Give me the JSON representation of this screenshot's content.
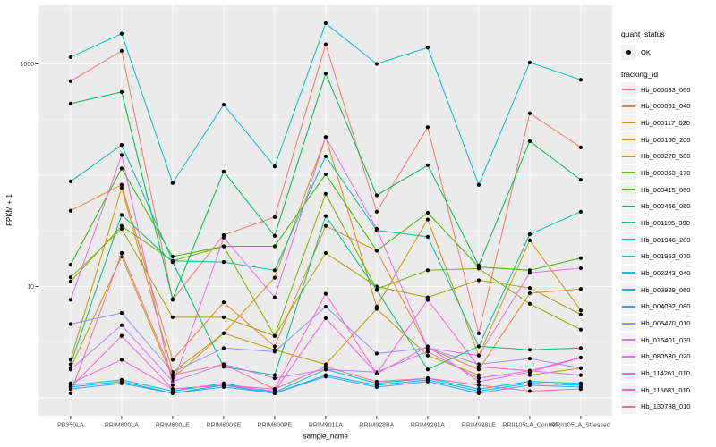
{
  "chart_data": {
    "type": "line",
    "title": "",
    "xlabel": "sample_name",
    "ylabel": "FPKM + 1",
    "y_scale": "log10",
    "ylim": [
      1,
      3000
    ],
    "y_tick_labels": [
      "1000",
      "10"
    ],
    "y_tick_values": [
      1000,
      10
    ],
    "gridlines": {
      "major": [
        1000,
        100,
        10,
        1
      ],
      "minor": [
        3162,
        316.2,
        31.62,
        3.162
      ]
    },
    "legend_position": "right",
    "panel_background": "#EBEBEB",
    "point_marker": {
      "shape": "black-dot",
      "color": "#000000"
    },
    "categories": [
      "PB350LA",
      "RRIM600LA",
      "RRIM600LE",
      "RRIM600SE",
      "RRIM600PE",
      "RRIM901LA",
      "RRIM928BA",
      "RRIM928LA",
      "RRIM928LE",
      "RRII105LA_Control",
      "RRII105LA_Stressed"
    ],
    "series": [
      {
        "name": "Hb_000033_060",
        "color": "#F8766D",
        "values": [
          700,
          1310,
          7.6,
          29,
          42,
          1500,
          47,
          270,
          3.8,
          360,
          178
        ]
      },
      {
        "name": "Hb_000061_040",
        "color": "#EA8331",
        "values": [
          48,
          82,
          2.2,
          7.2,
          2.9,
          35,
          21,
          2.8,
          1.8,
          8.7,
          9.5
        ]
      },
      {
        "name": "Hb_000117_020",
        "color": "#D89000",
        "values": [
          2.2,
          77,
          1.7,
          3.8,
          12,
          220,
          6.6,
          40,
          2.4,
          26,
          6.1
        ]
      },
      {
        "name": "Hb_000160_200",
        "color": "#C49A00",
        "values": [
          1.85,
          18.6,
          1.5,
          3.8,
          2.7,
          2.0,
          6.3,
          2.4,
          1.6,
          1.6,
          1.85
        ]
      },
      {
        "name": "Hb_000270_500",
        "color": "#A3A500",
        "values": [
          12.1,
          33,
          5.3,
          5.3,
          3.6,
          20,
          10,
          8,
          11.4,
          9.7,
          5.6
        ]
      },
      {
        "name": "Hb_000363_170",
        "color": "#7CAE00",
        "values": [
          11.1,
          35,
          17,
          23,
          3.6,
          68,
          9.5,
          14,
          14.5,
          7.0,
          4.1
        ]
      },
      {
        "name": "Hb_000415_060",
        "color": "#39B600",
        "values": [
          15.7,
          115,
          18.6,
          23,
          23,
          102,
          21,
          46,
          15,
          14,
          18
        ]
      },
      {
        "name": "Hb_000466_060",
        "color": "#00BB4E",
        "values": [
          440,
          560,
          7.7,
          108,
          28.5,
          820,
          66,
          123,
          15.5,
          202,
          91
        ]
      },
      {
        "name": "Hb_001195_390",
        "color": "#00BF7D",
        "values": [
          2.0,
          44,
          16.6,
          1.9,
          1.6,
          43,
          9.3,
          1.8,
          2.9,
          2.7,
          2.8
        ]
      },
      {
        "name": "Hb_001946_280",
        "color": "#00C1A3",
        "values": [
          88,
          187,
          17,
          16.6,
          14,
          148,
          32,
          28,
          2.9,
          29.5,
          47
        ]
      },
      {
        "name": "Hb_001952_070",
        "color": "#00BFC4",
        "values": [
          1150,
          1870,
          85,
          430,
          120,
          2320,
          1000,
          1400,
          82,
          1030,
          720
        ]
      },
      {
        "name": "Hb_002243_040",
        "color": "#00BAE0",
        "values": [
          1.3,
          1.45,
          1.15,
          1.35,
          1.12,
          1.8,
          1.35,
          1.5,
          1.2,
          1.4,
          1.35
        ]
      },
      {
        "name": "Hb_003929_060",
        "color": "#00B0F6",
        "values": [
          1.25,
          1.4,
          1.1,
          1.3,
          1.1,
          1.6,
          1.3,
          1.45,
          1.15,
          1.35,
          1.3
        ]
      },
      {
        "name": "Hb_004032_080",
        "color": "#35A2FF",
        "values": [
          1.2,
          1.35,
          1.1,
          1.25,
          1.1,
          1.55,
          1.25,
          1.4,
          1.1,
          1.3,
          1.25
        ]
      },
      {
        "name": "Hb_005470_010",
        "color": "#9590FF",
        "values": [
          4.6,
          5.8,
          1.7,
          2.8,
          2.6,
          6.6,
          2.5,
          2.8,
          2.0,
          2.25,
          1.85
        ]
      },
      {
        "name": "Hb_015401_030",
        "color": "#C77CFF",
        "values": [
          1.8,
          4.5,
          1.4,
          2.0,
          1.5,
          1.8,
          1.7,
          2.6,
          1.5,
          1.75,
          1.6
        ]
      },
      {
        "name": "Hb_080530_020",
        "color": "#E76BF3",
        "values": [
          7.6,
          152,
          1.3,
          27.5,
          8.0,
          220,
          33,
          2.8,
          2.4,
          13.3,
          14.6
        ]
      },
      {
        "name": "Hb_114261_010",
        "color": "#FA62DB",
        "values": [
          1.25,
          3.6,
          1.2,
          1.3,
          1.15,
          5.2,
          1.65,
          2.9,
          1.4,
          1.7,
          2.3
        ]
      },
      {
        "name": "Hb_116681_010",
        "color": "#FF61CC",
        "values": [
          1.35,
          2.2,
          1.2,
          1.3,
          1.2,
          8.6,
          1.65,
          7.6,
          1.9,
          1.75,
          2.3
        ]
      },
      {
        "name": "Hb_130788_010",
        "color": "#FF6A98",
        "values": [
          1.1,
          20,
          1.6,
          2.0,
          1.2,
          1.9,
          1.4,
          1.5,
          1.3,
          1.15,
          1.2
        ]
      }
    ]
  },
  "legend": {
    "quant_status_title": "quant_status",
    "quant_status_ok_label": "OK",
    "tracking_title": "tracking_id"
  }
}
